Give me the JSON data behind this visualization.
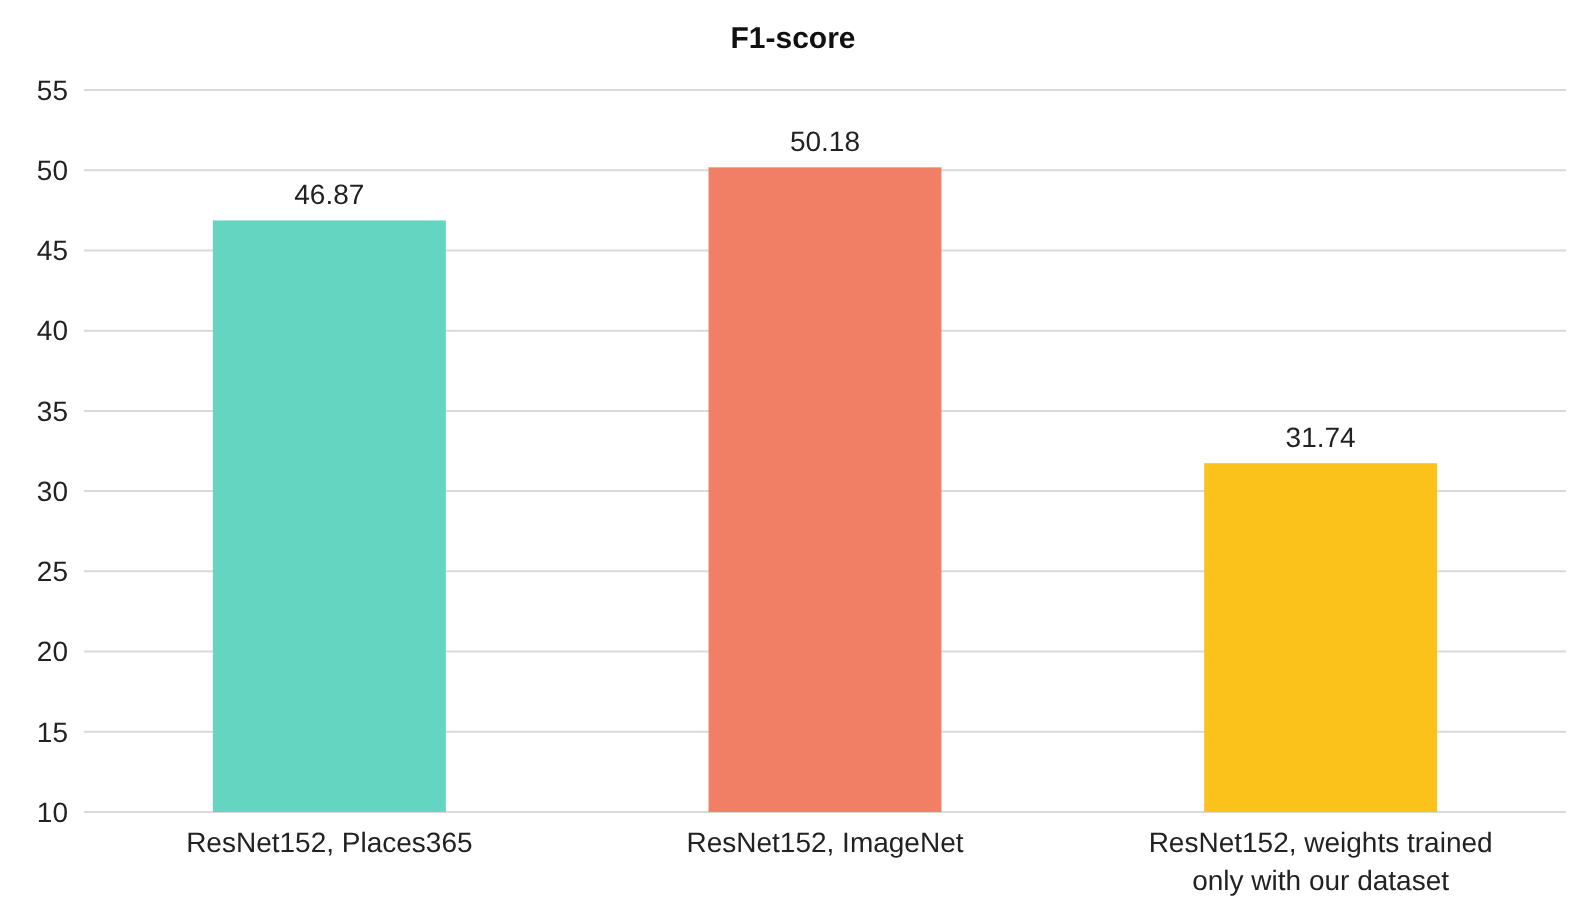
{
  "chart_data": {
    "type": "bar",
    "title": "F1-score",
    "categories": [
      "ResNet152, Places365",
      "ResNet152, ImageNet",
      "ResNet152, weights trained only with our dataset"
    ],
    "values": [
      46.87,
      50.18,
      31.74
    ],
    "colors": [
      "#64d5c0",
      "#f17f66",
      "#fbc21b"
    ],
    "ylim": [
      10,
      55
    ],
    "yticks": [
      10,
      15,
      20,
      25,
      30,
      35,
      40,
      45,
      50,
      55
    ],
    "grid": "y",
    "data_labels": true
  }
}
